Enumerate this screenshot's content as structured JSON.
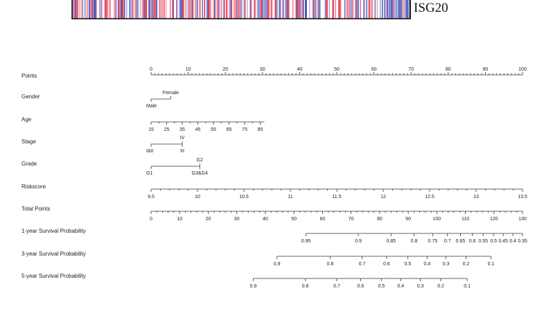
{
  "heatmap": {
    "gene": "ISG20",
    "colors": {
      "low": "#2f3fb0",
      "high": "#e0243c",
      "mid": "#ffffff"
    }
  },
  "chart_data": {
    "type": "nomogram",
    "rows": [
      {
        "label": "Points",
        "kind": "scale",
        "ticks": [
          {
            "v": 0,
            "t": "0"
          },
          {
            "v": 10,
            "t": "10"
          },
          {
            "v": 20,
            "t": "20"
          },
          {
            "v": 30,
            "t": "30"
          },
          {
            "v": 40,
            "t": "40"
          },
          {
            "v": 50,
            "t": "50"
          },
          {
            "v": 60,
            "t": "60"
          },
          {
            "v": 70,
            "t": "70"
          },
          {
            "v": 80,
            "t": "80"
          },
          {
            "v": 90,
            "t": "90"
          },
          {
            "v": 100,
            "t": "100"
          }
        ],
        "labels_position": "above",
        "minor_per_major": 10
      },
      {
        "label": "Gender",
        "kind": "categorical",
        "levels": [
          {
            "t": "Male",
            "points": 0,
            "side": "below"
          },
          {
            "t": "Female",
            "points": 5.3,
            "side": "above"
          }
        ]
      },
      {
        "label": "Age",
        "kind": "scale",
        "ticks": [
          {
            "v": 0,
            "t": "15"
          },
          {
            "v": 4.2,
            "t": "25"
          },
          {
            "v": 8.4,
            "t": "35"
          },
          {
            "v": 12.6,
            "t": "45"
          },
          {
            "v": 16.8,
            "t": "55"
          },
          {
            "v": 21,
            "t": "65"
          },
          {
            "v": 25.2,
            "t": "75"
          },
          {
            "v": 29.4,
            "t": "85"
          }
        ],
        "end_points": 30.5,
        "labels_position": "below",
        "minor_per_major": 2
      },
      {
        "label": "Stage",
        "kind": "categorical",
        "levels": [
          {
            "t": "I&II",
            "points": 0,
            "side": "below"
          },
          {
            "t": "III",
            "points": 8.4,
            "side": "below"
          },
          {
            "t": "IV",
            "points": 8.4,
            "side": "above"
          }
        ]
      },
      {
        "label": "Grade",
        "kind": "categorical",
        "levels": [
          {
            "t": "G1",
            "points": 0,
            "side": "below"
          },
          {
            "t": "G2",
            "points": 13.1,
            "side": "above"
          },
          {
            "t": "G3&G4",
            "points": 13.1,
            "side": "below"
          }
        ]
      },
      {
        "label": "Riskscore",
        "kind": "scale",
        "ticks": [
          {
            "v": 0,
            "t": "9.5"
          },
          {
            "v": 12.5,
            "t": "10"
          },
          {
            "v": 25,
            "t": "10.5"
          },
          {
            "v": 37.5,
            "t": "11"
          },
          {
            "v": 50,
            "t": "11.5"
          },
          {
            "v": 62.5,
            "t": "12"
          },
          {
            "v": 75,
            "t": "12.5"
          },
          {
            "v": 87.5,
            "t": "13"
          },
          {
            "v": 100,
            "t": "13.5"
          }
        ],
        "labels_position": "below",
        "minor_per_major": 5
      },
      {
        "label": "Total Points",
        "kind": "scale",
        "ticks": [
          {
            "v": 0,
            "t": "0"
          },
          {
            "v": 7.69,
            "t": "10"
          },
          {
            "v": 15.38,
            "t": "20"
          },
          {
            "v": 23.08,
            "t": "30"
          },
          {
            "v": 30.77,
            "t": "40"
          },
          {
            "v": 38.46,
            "t": "50"
          },
          {
            "v": 46.15,
            "t": "60"
          },
          {
            "v": 53.85,
            "t": "70"
          },
          {
            "v": 61.54,
            "t": "80"
          },
          {
            "v": 69.23,
            "t": "90"
          },
          {
            "v": 76.92,
            "t": "100"
          },
          {
            "v": 84.62,
            "t": "110"
          },
          {
            "v": 92.31,
            "t": "120"
          },
          {
            "v": 100,
            "t": "130"
          }
        ],
        "labels_position": "below",
        "minor_per_major": 5
      },
      {
        "label": "1-year Survival Probability",
        "kind": "prob",
        "labels_position": "below",
        "ticks": [
          {
            "v": 41.7,
            "t": "0.95"
          },
          {
            "v": 55.8,
            "t": "0.9"
          },
          {
            "v": 64.6,
            "t": "0.85"
          },
          {
            "v": 70.8,
            "t": "0.8"
          },
          {
            "v": 75.8,
            "t": "0.75"
          },
          {
            "v": 79.8,
            "t": "0.7"
          },
          {
            "v": 83.3,
            "t": "0.65"
          },
          {
            "v": 86.5,
            "t": "0.6"
          },
          {
            "v": 89.4,
            "t": "0.55"
          },
          {
            "v": 92.2,
            "t": "0.5"
          },
          {
            "v": 94.8,
            "t": "0.45"
          },
          {
            "v": 97.4,
            "t": "0.4"
          },
          {
            "v": 100,
            "t": "0.35"
          }
        ]
      },
      {
        "label": "3-year Survival Probability",
        "kind": "prob",
        "labels_position": "below",
        "ticks": [
          {
            "v": 33.9,
            "t": "0.9"
          },
          {
            "v": 48.2,
            "t": "0.8"
          },
          {
            "v": 56.8,
            "t": "0.7"
          },
          {
            "v": 63.4,
            "t": "0.6"
          },
          {
            "v": 69.1,
            "t": "0.5"
          },
          {
            "v": 74.3,
            "t": "0.4"
          },
          {
            "v": 79.4,
            "t": "0.3"
          },
          {
            "v": 84.8,
            "t": "0.2"
          },
          {
            "v": 91.5,
            "t": "0.1"
          }
        ]
      },
      {
        "label": "5-year Survival Probability",
        "kind": "prob",
        "labels_position": "below",
        "ticks": [
          {
            "v": 27.5,
            "t": "0.9"
          },
          {
            "v": 41.5,
            "t": "0.8"
          },
          {
            "v": 50.0,
            "t": "0.7"
          },
          {
            "v": 56.4,
            "t": "0.6"
          },
          {
            "v": 62.0,
            "t": "0.5"
          },
          {
            "v": 67.2,
            "t": "0.4"
          },
          {
            "v": 72.5,
            "t": "0.3"
          },
          {
            "v": 78.0,
            "t": "0.2"
          },
          {
            "v": 85.1,
            "t": "0.1"
          }
        ]
      }
    ]
  }
}
